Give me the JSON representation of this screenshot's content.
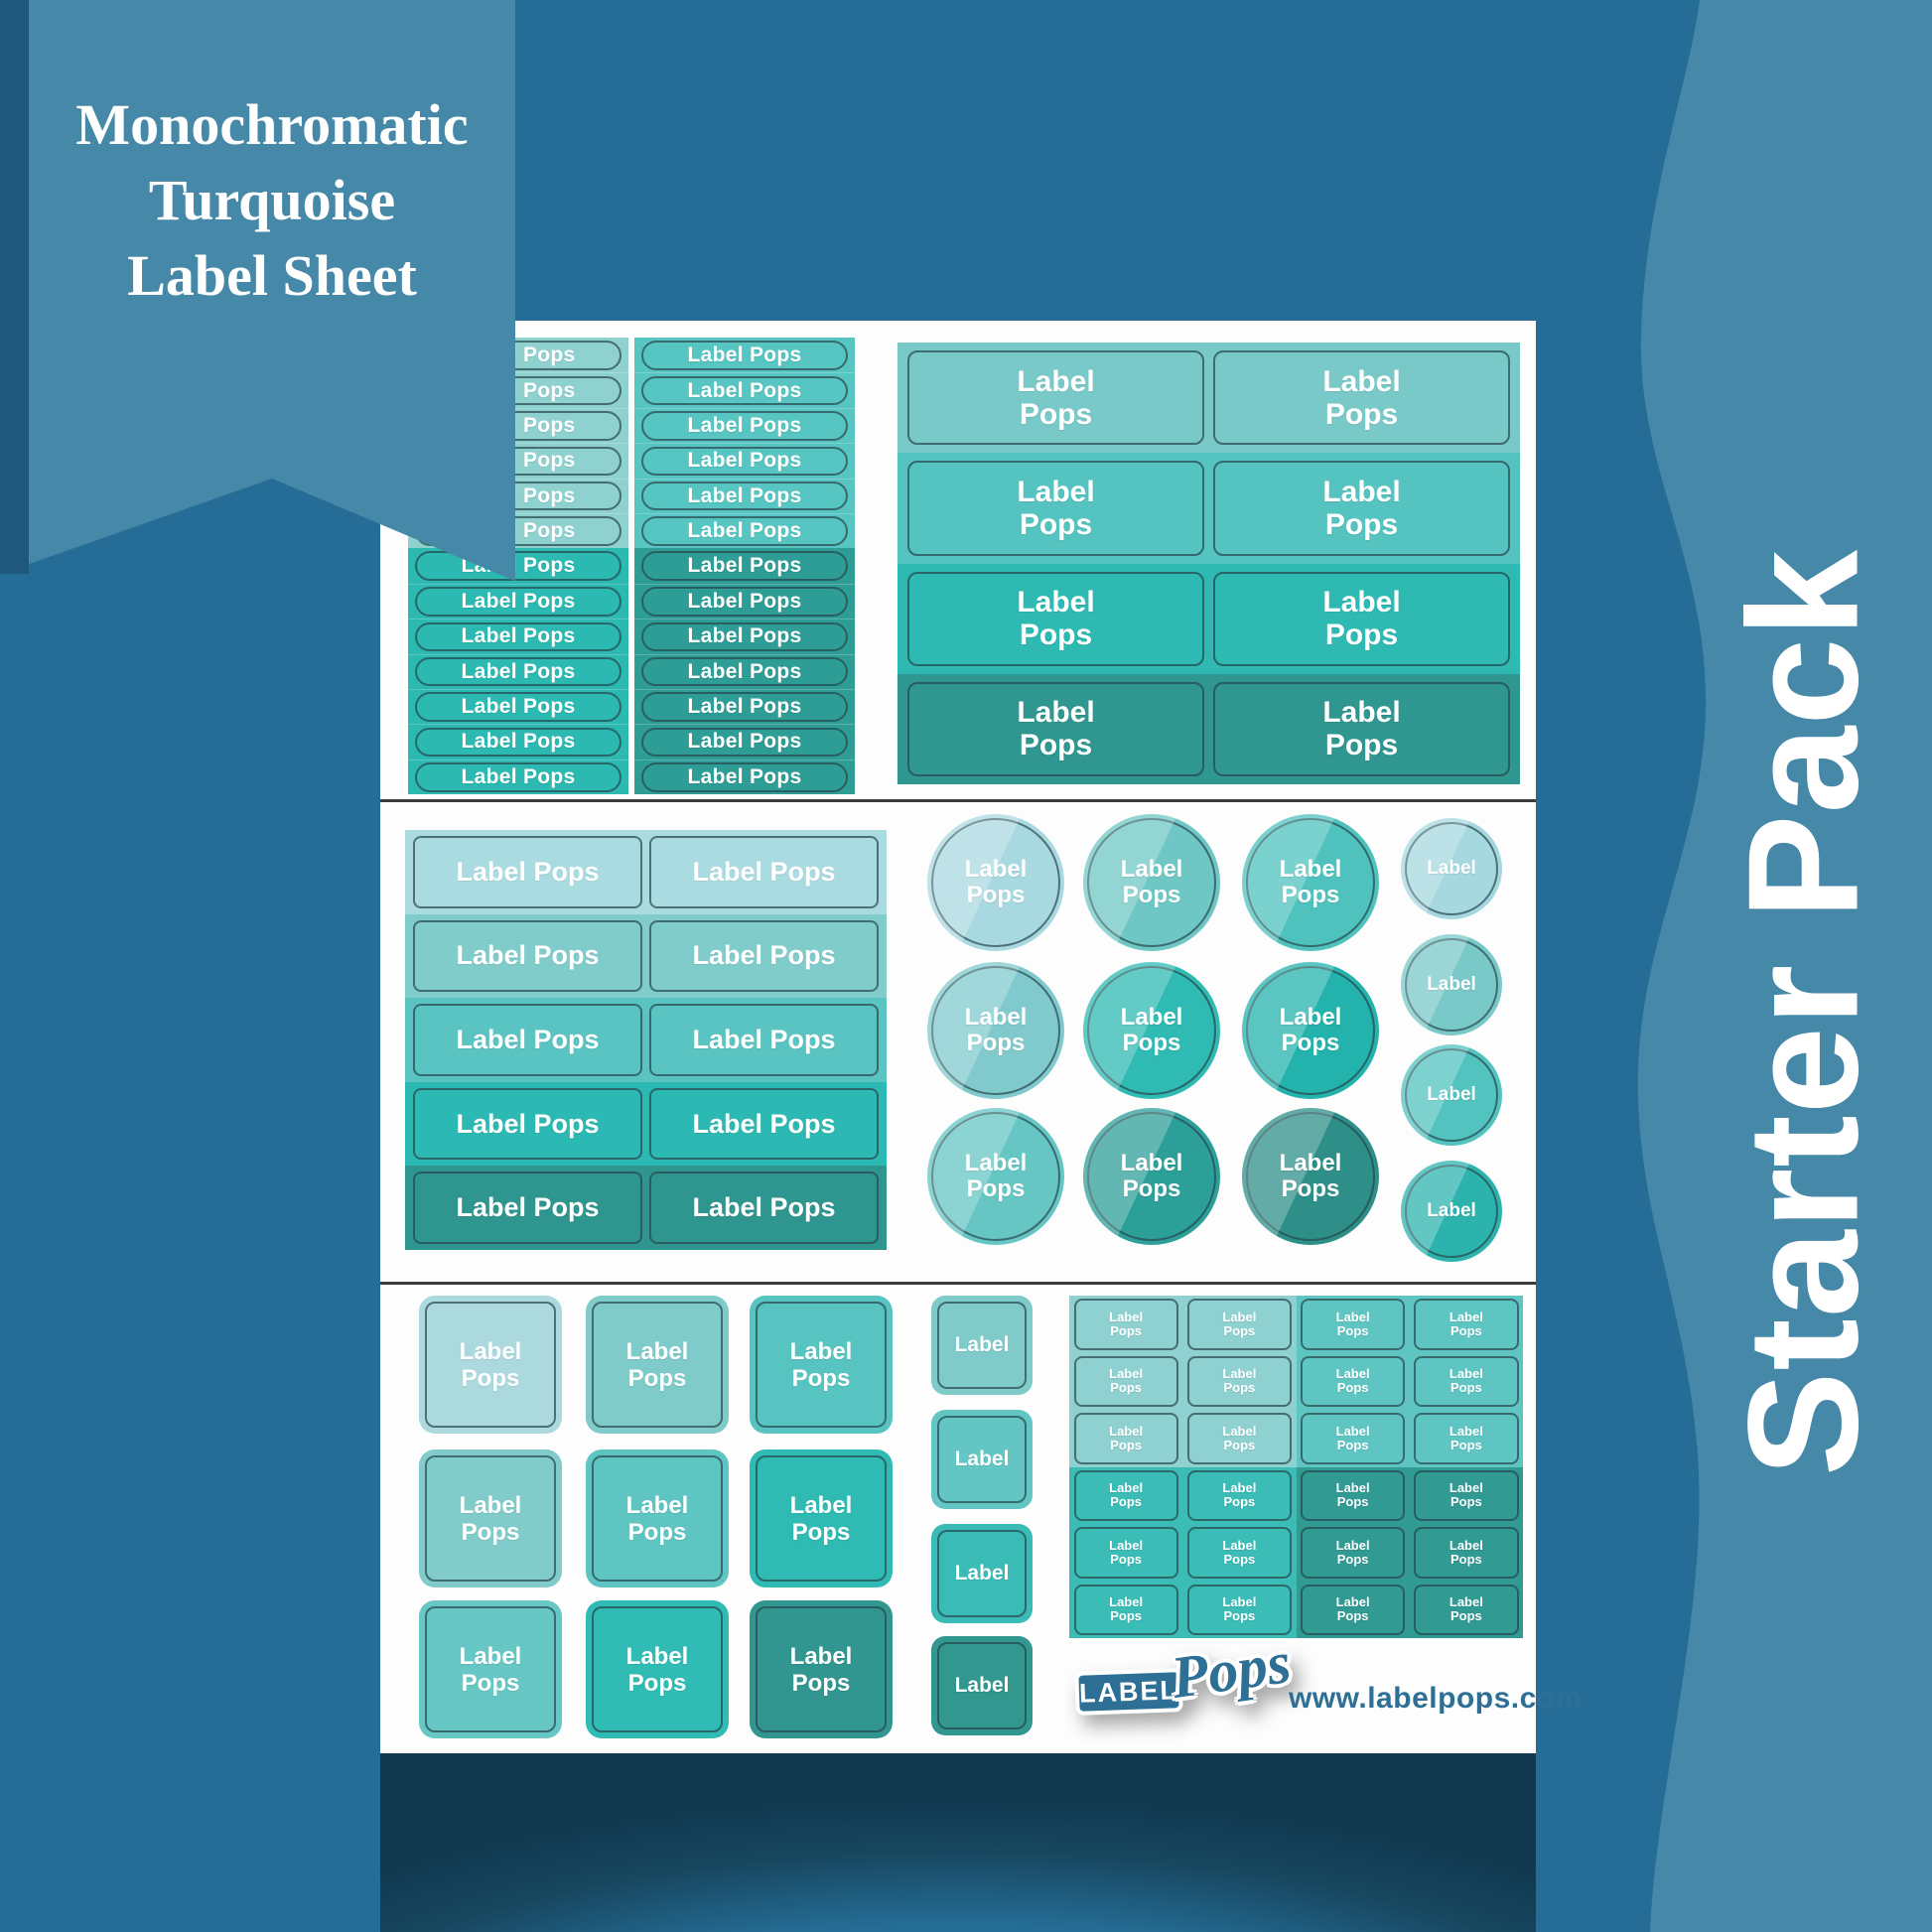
{
  "banner": {
    "lines": [
      "Monochromatic",
      "Turquoise",
      "Label Sheet"
    ]
  },
  "side_banner": {
    "text": "Starter Pack"
  },
  "sheet": {
    "label_text": "Label Pops",
    "label_line_1": "Label",
    "label_line_2": "Pops",
    "small_label_text": "Label"
  },
  "footer": {
    "logo_word_1": "LABEL",
    "logo_word_2": "Pops",
    "website": "www.labelpops.com"
  },
  "colors": {
    "background": "#256d96",
    "accent_band": "#4688a7",
    "sheet_white": "#fdfdfd",
    "divider": "#3b3b3b",
    "sticker_outline": "rgba(38,68,74,0.7)",
    "shadow_navy": "#10384f",
    "logo_blue": "#2e6f96"
  },
  "palette": {
    "top_pills_col1": [
      "#8ed1cf",
      "#2bb9b1"
    ],
    "top_pills_col2": [
      "#57c5c1",
      "#2d9d96"
    ],
    "top_rect_rows": [
      "#79c9c8",
      "#55c3c0",
      "#2ebab3",
      "#2f978f"
    ],
    "mid_rect_rows": [
      "#a9dbe1",
      "#80cccb",
      "#5ac4c2",
      "#2db9b3",
      "#2f968f"
    ],
    "big_circle_rows": [
      [
        "#a9d9e0",
        "#6ec7c4",
        "#4fc2bd"
      ],
      [
        "#80cacd",
        "#2fbab3",
        "#23b2ac"
      ],
      [
        "#66c6c4",
        "#2d9f99",
        "#2e8f88"
      ]
    ],
    "small_circles": [
      "#a5d8df",
      "#79c9c8",
      "#52c3bf",
      "#2db3ad"
    ],
    "bottom_square_rows": [
      [
        "#abd9de",
        "#7ecbca",
        "#57c4c1"
      ],
      [
        "#81cccb",
        "#5ec5c3",
        "#2fbab4"
      ],
      [
        "#66c7c4",
        "#30bcb5",
        "#30968f"
      ]
    ],
    "small_squares": [
      "#7fcbca",
      "#63c6c4",
      "#3abbb6",
      "#31978f"
    ],
    "mini_grid_quadrants": [
      "#8fd0d0",
      "#5fc5c2",
      "#3bbcb6",
      "#309a93"
    ]
  },
  "counts": {
    "top_pill_rows": 13,
    "top_pill_split_after": 6,
    "top_rect_rows": 4,
    "mid_rect_rows": 5,
    "big_circle_grid": "3x3",
    "small_circles": 4,
    "bottom_square_grid": "3x3",
    "small_squares": 4,
    "mini_grid_rows": 6,
    "mini_grid_cols": 4
  }
}
